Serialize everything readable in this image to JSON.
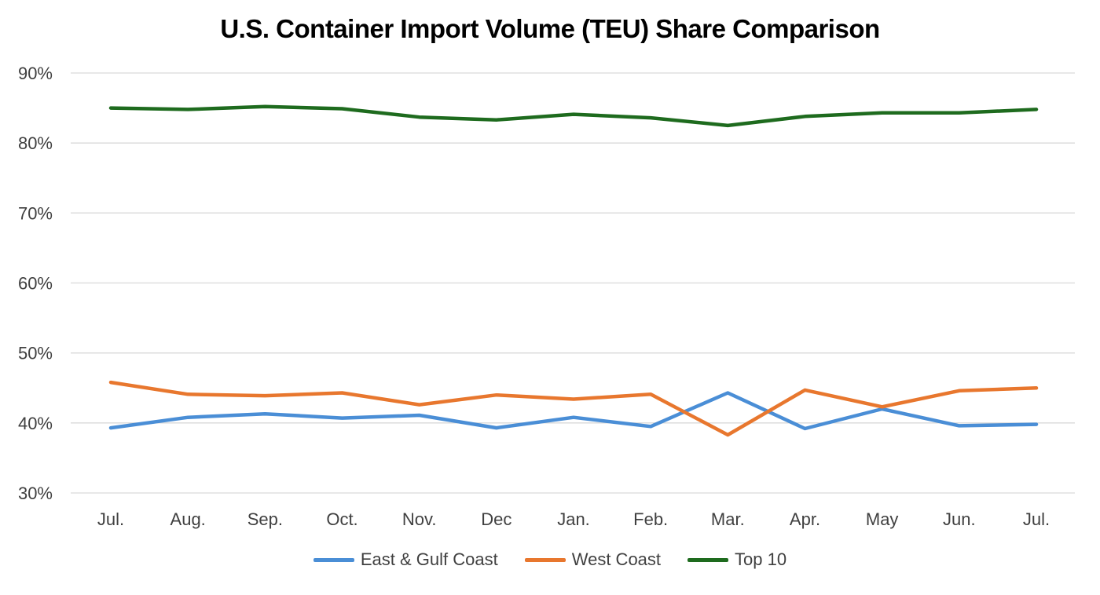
{
  "chart_data": {
    "type": "line",
    "title": "U.S. Container Import Volume (TEU) Share Comparison",
    "xlabel": "",
    "ylabel": "",
    "categories": [
      "Jul.",
      "Aug.",
      "Sep.",
      "Oct.",
      "Nov.",
      "Dec",
      "Jan.",
      "Feb.",
      "Mar.",
      "Apr.",
      "May",
      "Jun.",
      "Jul."
    ],
    "ylim": [
      30,
      90
    ],
    "y_ticks": [
      30,
      40,
      50,
      60,
      70,
      80,
      90
    ],
    "y_tick_labels": [
      "30%",
      "40%",
      "50%",
      "60%",
      "70%",
      "80%",
      "90%"
    ],
    "grid": true,
    "legend_position": "bottom",
    "series": [
      {
        "name": "East & Gulf Coast",
        "color": "#4A8ED6",
        "values": [
          39.3,
          40.8,
          41.3,
          40.7,
          41.1,
          39.3,
          40.8,
          39.5,
          44.3,
          39.2,
          42.0,
          39.6,
          39.8
        ]
      },
      {
        "name": "West Coast",
        "color": "#E8772E",
        "values": [
          45.8,
          44.1,
          43.9,
          44.3,
          42.6,
          44.0,
          43.4,
          44.1,
          38.3,
          44.7,
          42.3,
          44.6,
          45.0
        ]
      },
      {
        "name": "Top 10",
        "color": "#1E6B1E",
        "values": [
          85.0,
          84.8,
          85.2,
          84.9,
          83.7,
          83.3,
          84.1,
          83.6,
          82.5,
          83.8,
          84.3,
          84.3,
          84.8
        ]
      }
    ]
  }
}
